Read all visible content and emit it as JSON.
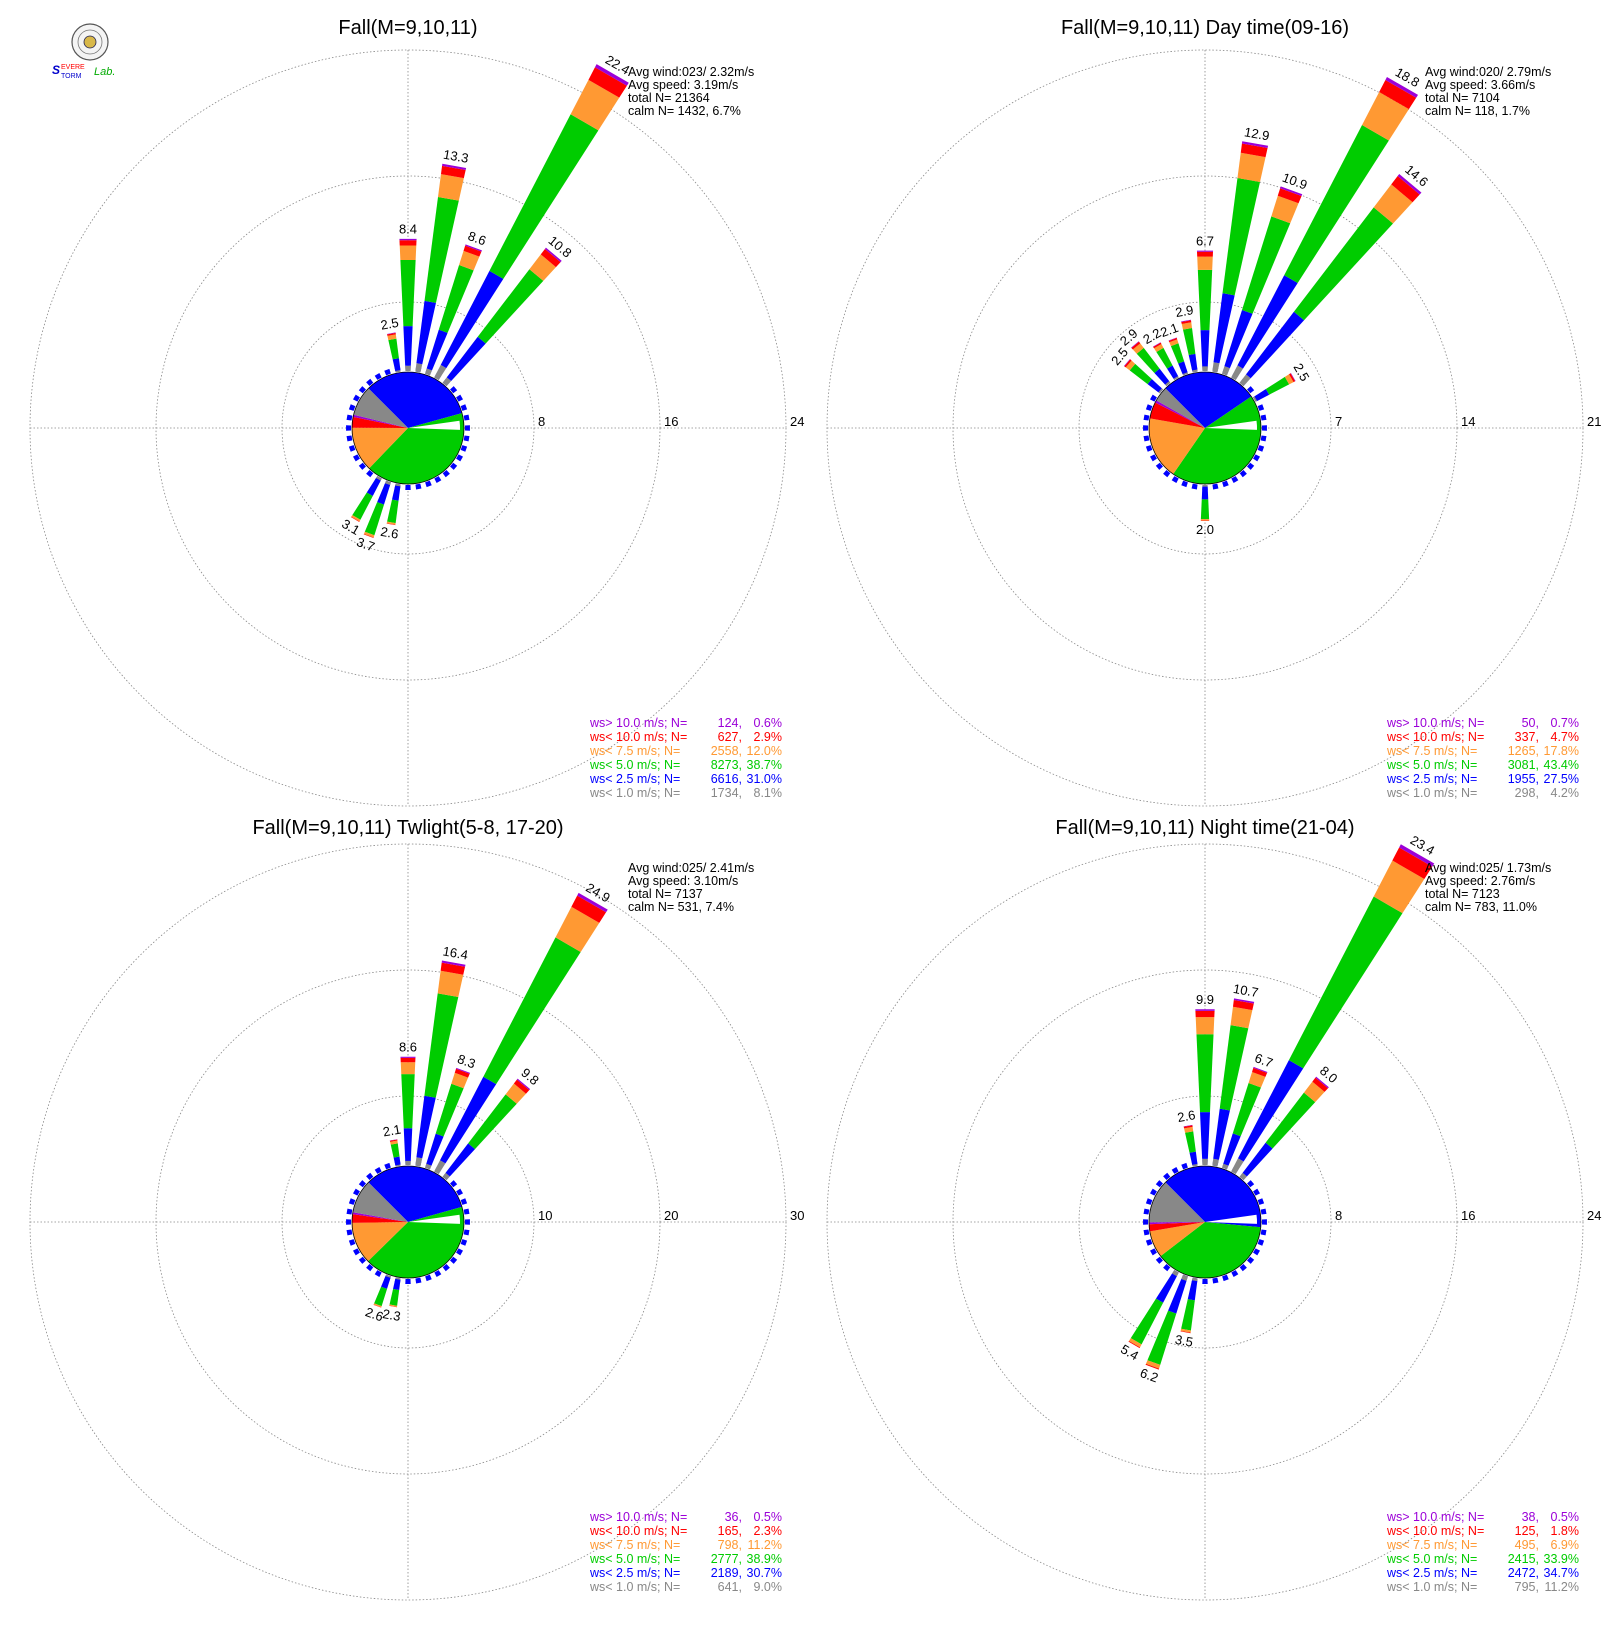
{
  "logo": {
    "text": "SevereStorm Lab."
  },
  "colors": {
    "purple": "#9b00d8",
    "red": "#ff0000",
    "orange": "#ff9933",
    "green": "#00cc00",
    "blue": "#0000ff",
    "gray": "#888888",
    "grid": "#888888"
  },
  "chart_data": [
    {
      "type": "wind-rose",
      "title": "Fall(M=9,10,11)",
      "rings": [
        "8",
        "16",
        "24"
      ],
      "rmax": 24,
      "info": [
        "Avg wind:023/ 2.32m/s",
        "Avg speed: 3.19m/s",
        "total N=      21364",
        "calm N=    1432,   6.7%"
      ],
      "bars": [
        {
          "dir": 0,
          "total": 8.4,
          "label": "8.4"
        },
        {
          "dir": 10,
          "total": 13.3,
          "label": "13.3"
        },
        {
          "dir": 20,
          "total": 8.6,
          "label": "8.6"
        },
        {
          "dir": 30,
          "total": 22.4,
          "label": "22.4"
        },
        {
          "dir": 40,
          "total": 10.8,
          "label": "10.8"
        },
        {
          "dir": 350,
          "total": 2.5,
          "label": "2.5"
        },
        {
          "dir": 190,
          "total": 2.6,
          "label": "2.6"
        },
        {
          "dir": 200,
          "total": 3.7,
          "label": "3.7"
        },
        {
          "dir": 210,
          "total": 3.1,
          "label": "3.1"
        }
      ],
      "legend": [
        {
          "label": "ws> 10.0 m/s; N=",
          "n": "124",
          "pct": "0.6%"
        },
        {
          "label": "ws< 10.0 m/s; N=",
          "n": "627",
          "pct": "2.9%"
        },
        {
          "label": "ws<  7.5 m/s; N=",
          "n": "2558",
          "pct": "12.0%"
        },
        {
          "label": "ws<  5.0 m/s; N=",
          "n": "8273",
          "pct": "38.7%"
        },
        {
          "label": "ws<  2.5 m/s; N=",
          "n": "6616",
          "pct": "31.0%"
        },
        {
          "label": "ws<  1.0 m/s; N=",
          "n": "1734",
          "pct": "8.1%"
        }
      ]
    },
    {
      "type": "wind-rose",
      "title": "Fall(M=9,10,11) Day time(09-16)",
      "rings": [
        "7",
        "14",
        "21"
      ],
      "rmax": 21,
      "info": [
        "Avg wind:020/ 2.79m/s",
        "Avg speed: 3.66m/s",
        "total N=       7104",
        "calm N=     118,   1.7%"
      ],
      "bars": [
        {
          "dir": 0,
          "total": 6.7,
          "label": "6.7"
        },
        {
          "dir": 10,
          "total": 12.9,
          "label": "12.9"
        },
        {
          "dir": 20,
          "total": 10.9,
          "label": "10.9"
        },
        {
          "dir": 30,
          "total": 18.8,
          "label": "18.8"
        },
        {
          "dir": 40,
          "total": 14.6,
          "label": "14.6"
        },
        {
          "dir": 60,
          "total": 2.5,
          "label": "2.5"
        },
        {
          "dir": 350,
          "total": 2.9,
          "label": "2.9"
        },
        {
          "dir": 340,
          "total": 2.1,
          "label": "2.1"
        },
        {
          "dir": 330,
          "total": 2.2,
          "label": "2.2"
        },
        {
          "dir": 320,
          "total": 2.9,
          "label": "2.9"
        },
        {
          "dir": 310,
          "total": 2.5,
          "label": "2.5"
        },
        {
          "dir": 180,
          "total": 2.0,
          "label": "2.0"
        }
      ],
      "legend": [
        {
          "label": "ws> 10.0 m/s; N=",
          "n": "50",
          "pct": "0.7%"
        },
        {
          "label": "ws< 10.0 m/s; N=",
          "n": "337",
          "pct": "4.7%"
        },
        {
          "label": "ws<  7.5 m/s; N=",
          "n": "1265",
          "pct": "17.8%"
        },
        {
          "label": "ws<  5.0 m/s; N=",
          "n": "3081",
          "pct": "43.4%"
        },
        {
          "label": "ws<  2.5 m/s; N=",
          "n": "1955",
          "pct": "27.5%"
        },
        {
          "label": "ws<  1.0 m/s; N=",
          "n": "298",
          "pct": "4.2%"
        }
      ]
    },
    {
      "type": "wind-rose",
      "title": "Fall(M=9,10,11) Twlight(5-8, 17-20)",
      "rings": [
        "10",
        "20",
        "30"
      ],
      "rmax": 30,
      "info": [
        "Avg wind:025/ 2.41m/s",
        "Avg speed: 3.10m/s",
        "total N=       7137",
        "calm N=     531,   7.4%"
      ],
      "bars": [
        {
          "dir": 0,
          "total": 8.6,
          "label": "8.6"
        },
        {
          "dir": 10,
          "total": 16.4,
          "label": "16.4"
        },
        {
          "dir": 20,
          "total": 8.3,
          "label": "8.3"
        },
        {
          "dir": 30,
          "total": 24.9,
          "label": "24.9"
        },
        {
          "dir": 40,
          "total": 9.8,
          "label": "9.8"
        },
        {
          "dir": 350,
          "total": 2.1,
          "label": "2.1"
        },
        {
          "dir": 190,
          "total": 2.3,
          "label": "2.3"
        },
        {
          "dir": 200,
          "total": 2.6,
          "label": "2.6"
        }
      ],
      "legend": [
        {
          "label": "ws> 10.0 m/s; N=",
          "n": "36",
          "pct": "0.5%"
        },
        {
          "label": "ws< 10.0 m/s; N=",
          "n": "165",
          "pct": "2.3%"
        },
        {
          "label": "ws<  7.5 m/s; N=",
          "n": "798",
          "pct": "11.2%"
        },
        {
          "label": "ws<  5.0 m/s; N=",
          "n": "2777",
          "pct": "38.9%"
        },
        {
          "label": "ws<  2.5 m/s; N=",
          "n": "2189",
          "pct": "30.7%"
        },
        {
          "label": "ws<  1.0 m/s; N=",
          "n": "641",
          "pct": "9.0%"
        }
      ]
    },
    {
      "type": "wind-rose",
      "title": "Fall(M=9,10,11) Night time(21-04)",
      "rings": [
        "8",
        "16",
        "24"
      ],
      "rmax": 24,
      "info": [
        "Avg wind:025/ 1.73m/s",
        "Avg speed: 2.76m/s",
        "total N=       7123",
        "calm N=     783,  11.0%"
      ],
      "bars": [
        {
          "dir": 0,
          "total": 9.9,
          "label": "9.9"
        },
        {
          "dir": 10,
          "total": 10.7,
          "label": "10.7"
        },
        {
          "dir": 20,
          "total": 6.7,
          "label": "6.7"
        },
        {
          "dir": 30,
          "total": 23.4,
          "label": "23.4"
        },
        {
          "dir": 40,
          "total": 8.0,
          "label": "8.0"
        },
        {
          "dir": 350,
          "total": 2.6,
          "label": "2.6"
        },
        {
          "dir": 190,
          "total": 3.5,
          "label": "3.5"
        },
        {
          "dir": 200,
          "total": 6.2,
          "label": "6.2"
        },
        {
          "dir": 210,
          "total": 5.4,
          "label": "5.4"
        }
      ],
      "legend": [
        {
          "label": "ws> 10.0 m/s; N=",
          "n": "38",
          "pct": "0.5%"
        },
        {
          "label": "ws< 10.0 m/s; N=",
          "n": "125",
          "pct": "1.8%"
        },
        {
          "label": "ws<  7.5 m/s; N=",
          "n": "495",
          "pct": "6.9%"
        },
        {
          "label": "ws<  5.0 m/s; N=",
          "n": "2415",
          "pct": "33.9%"
        },
        {
          "label": "ws<  2.5 m/s; N=",
          "n": "2472",
          "pct": "34.7%"
        },
        {
          "label": "ws<  1.0 m/s; N=",
          "n": "795",
          "pct": "11.2%"
        }
      ]
    }
  ]
}
